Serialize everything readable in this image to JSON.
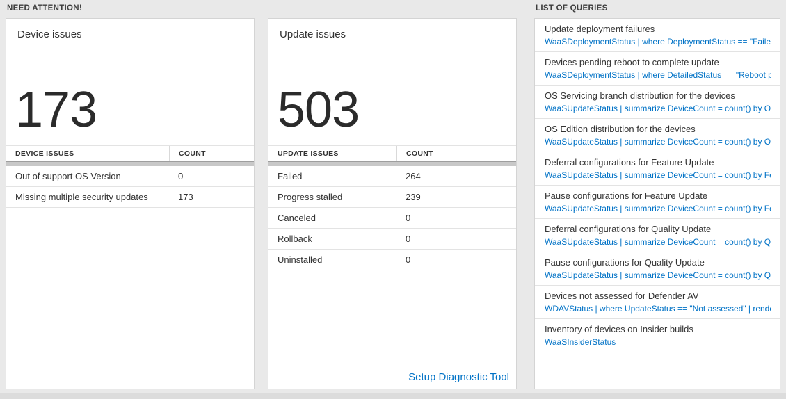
{
  "page": {
    "background": "#e9e9e9",
    "accent_blue": "#0072c6"
  },
  "sections": {
    "need_attention": {
      "title": "NEED ATTENTION!"
    },
    "queries": {
      "title": "LIST OF QUERIES"
    }
  },
  "device_card": {
    "title": "Device issues",
    "count": "173",
    "table": {
      "headers": [
        "DEVICE ISSUES",
        "COUNT"
      ],
      "rows": [
        {
          "label": "Out of support OS Version",
          "count": "0"
        },
        {
          "label": "Missing multiple security updates",
          "count": "173"
        }
      ]
    }
  },
  "update_card": {
    "title": "Update issues",
    "count": "503",
    "table": {
      "headers": [
        "UPDATE ISSUES",
        "COUNT"
      ],
      "rows": [
        {
          "label": "Failed",
          "count": "264"
        },
        {
          "label": "Progress stalled",
          "count": "239"
        },
        {
          "label": "Canceled",
          "count": "0"
        },
        {
          "label": "Rollback",
          "count": "0"
        },
        {
          "label": "Uninstalled",
          "count": "0"
        }
      ]
    },
    "footer_link": "Setup Diagnostic Tool"
  },
  "queries_card": {
    "items": [
      {
        "title": "Update deployment failures",
        "query": "WaaSDeploymentStatus | where DeploymentStatus == \"Failed\" |..."
      },
      {
        "title": "Devices pending reboot to complete update",
        "query": "WaaSDeploymentStatus | where DetailedStatus == \"Reboot pend..."
      },
      {
        "title": "OS Servicing branch distribution for the devices",
        "query": "WaaSUpdateStatus | summarize DeviceCount = count() by OSSer..."
      },
      {
        "title": "OS Edition distribution for the devices",
        "query": "WaaSUpdateStatus | summarize DeviceCount = count() by OSEdit..."
      },
      {
        "title": "Deferral configurations for Feature Update",
        "query": "WaaSUpdateStatus | summarize DeviceCount = count() by Featur..."
      },
      {
        "title": "Pause configurations for Feature Update",
        "query": "WaaSUpdateStatus | summarize DeviceCount = count() by Featur..."
      },
      {
        "title": "Deferral configurations for Quality Update",
        "query": "WaaSUpdateStatus | summarize DeviceCount = count() by Qualit..."
      },
      {
        "title": "Pause configurations for Quality Update",
        "query": "WaaSUpdateStatus | summarize DeviceCount = count() by Qualit..."
      },
      {
        "title": "Devices not assessed for Defender AV",
        "query": "WDAVStatus | where UpdateStatus == \"Not assessed\" | render ta..."
      },
      {
        "title": "Inventory of devices on Insider builds",
        "query": "WaaSInsiderStatus"
      }
    ]
  }
}
